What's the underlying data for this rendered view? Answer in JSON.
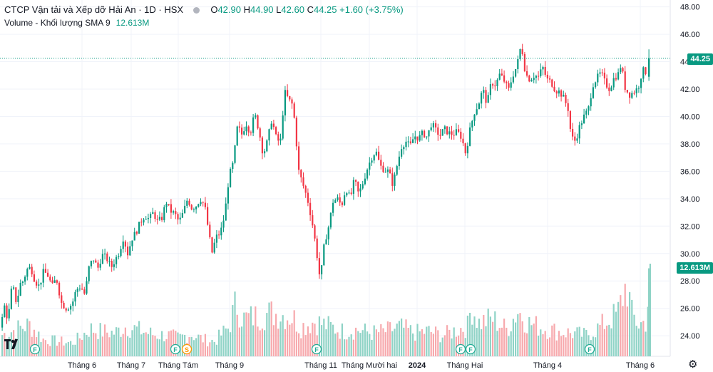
{
  "legend": {
    "title": "CTCP Vận tải và Xếp dỡ Hải An · 1D · HSX",
    "open_label": "O",
    "open": "42.90",
    "high_label": "H",
    "high": "44.90",
    "low_label": "L",
    "low": "42.60",
    "close_label": "C",
    "close": "44.25",
    "change": "+1.60 (+3.75%)",
    "volume_label": "Volume - Khối lượng SMA 9",
    "volume_value": "12.613M"
  },
  "price_tag": "44.25",
  "volume_tag": "12.613M",
  "colors": {
    "up": "#089981",
    "down": "#f23645",
    "up_volume": "#8fd3c6",
    "down_volume": "#f7a9ad",
    "grid": "#f0f3fa",
    "event_badge": "#22ab94",
    "split_badge": "#ff9800"
  },
  "icons": {
    "logo": "tradingview-logo-icon",
    "settings": "gear-icon"
  },
  "chart_data": {
    "type": "candlestick",
    "title": "CTCP Vận tải và Xếp dỡ Hải An · 1D · HSX",
    "ylim": [
      22.5,
      48.5
    ],
    "y_ticks": [
      "48.00",
      "46.00",
      "44.00",
      "42.00",
      "40.00",
      "38.00",
      "36.00",
      "34.00",
      "32.00",
      "30.00",
      "28.00",
      "26.00",
      "24.00"
    ],
    "x_ticks": [
      "Tháng 6",
      "Tháng 7",
      "Tháng Tám",
      "Tháng 9",
      "Tháng 11",
      "Tháng Mười hai",
      "2024",
      "Tháng Hai",
      "Tháng 4",
      "Tháng 6"
    ],
    "last_price": 44.25,
    "last_volume": "12.613M",
    "price_path": [
      [
        0,
        24.6
      ],
      [
        5,
        26.2
      ],
      [
        10,
        25.1
      ],
      [
        16,
        27.8
      ],
      [
        22,
        26.4
      ],
      [
        28,
        27.9
      ],
      [
        32,
        28.0
      ],
      [
        36,
        28.8
      ],
      [
        42,
        29.0
      ],
      [
        48,
        28.0
      ],
      [
        54,
        27.6
      ],
      [
        60,
        28.7
      ],
      [
        66,
        28.4
      ],
      [
        72,
        27.6
      ],
      [
        78,
        28.2
      ],
      [
        85,
        26.4
      ],
      [
        92,
        26.0
      ],
      [
        100,
        26.3
      ],
      [
        106,
        27.4
      ],
      [
        112,
        27.6
      ],
      [
        118,
        27.0
      ],
      [
        124,
        29.1
      ],
      [
        130,
        29.6
      ],
      [
        136,
        28.9
      ],
      [
        142,
        29.9
      ],
      [
        148,
        29.7
      ],
      [
        155,
        29.0
      ],
      [
        160,
        29.5
      ],
      [
        166,
        30.1
      ],
      [
        172,
        31.2
      ],
      [
        178,
        30.0
      ],
      [
        184,
        31.1
      ],
      [
        190,
        31.6
      ],
      [
        196,
        32.3
      ],
      [
        202,
        32.8
      ],
      [
        208,
        32.5
      ],
      [
        214,
        33.0
      ],
      [
        220,
        32.3
      ],
      [
        226,
        32.6
      ],
      [
        232,
        33.8
      ],
      [
        238,
        33.1
      ],
      [
        244,
        32.9
      ],
      [
        250,
        32.3
      ],
      [
        256,
        33.0
      ],
      [
        262,
        34.0
      ],
      [
        268,
        33.3
      ],
      [
        274,
        33.5
      ],
      [
        280,
        34.0
      ],
      [
        286,
        33.5
      ],
      [
        292,
        31.4
      ],
      [
        296,
        30.0
      ],
      [
        302,
        31.2
      ],
      [
        308,
        31.5
      ],
      [
        314,
        32.8
      ],
      [
        320,
        35.6
      ],
      [
        326,
        36.6
      ],
      [
        332,
        39.3
      ],
      [
        338,
        38.7
      ],
      [
        344,
        39.5
      ],
      [
        350,
        38.8
      ],
      [
        356,
        40.2
      ],
      [
        362,
        39.0
      ],
      [
        368,
        37.2
      ],
      [
        374,
        38.2
      ],
      [
        380,
        39.8
      ],
      [
        386,
        38.5
      ],
      [
        392,
        38.0
      ],
      [
        398,
        41.8
      ],
      [
        404,
        41.2
      ],
      [
        410,
        40.8
      ],
      [
        414,
        38.5
      ],
      [
        418,
        36.0
      ],
      [
        424,
        35.0
      ],
      [
        430,
        34.0
      ],
      [
        436,
        32.5
      ],
      [
        442,
        30.5
      ],
      [
        448,
        28.0
      ],
      [
        454,
        30.8
      ],
      [
        460,
        32.0
      ],
      [
        466,
        33.8
      ],
      [
        472,
        34.0
      ],
      [
        478,
        33.5
      ],
      [
        484,
        34.8
      ],
      [
        490,
        34.0
      ],
      [
        496,
        35.4
      ],
      [
        502,
        34.3
      ],
      [
        508,
        35.2
      ],
      [
        514,
        36.2
      ],
      [
        520,
        37.0
      ],
      [
        526,
        37.5
      ],
      [
        532,
        36.4
      ],
      [
        538,
        36.1
      ],
      [
        544,
        36.0
      ],
      [
        550,
        35.0
      ],
      [
        556,
        36.5
      ],
      [
        562,
        37.8
      ],
      [
        568,
        38.2
      ],
      [
        574,
        37.8
      ],
      [
        580,
        38.6
      ],
      [
        586,
        38.4
      ],
      [
        592,
        38.8
      ],
      [
        598,
        38.5
      ],
      [
        604,
        39.5
      ],
      [
        610,
        39.0
      ],
      [
        616,
        38.6
      ],
      [
        622,
        39.1
      ],
      [
        628,
        38.8
      ],
      [
        634,
        38.7
      ],
      [
        640,
        38.9
      ],
      [
        646,
        38.5
      ],
      [
        652,
        37.3
      ],
      [
        658,
        39.0
      ],
      [
        664,
        40.3
      ],
      [
        670,
        40.9
      ],
      [
        676,
        42.0
      ],
      [
        682,
        40.9
      ],
      [
        688,
        42.5
      ],
      [
        694,
        42.3
      ],
      [
        700,
        43.1
      ],
      [
        706,
        42.6
      ],
      [
        712,
        41.9
      ],
      [
        718,
        43.0
      ],
      [
        724,
        43.7
      ],
      [
        730,
        45.3
      ],
      [
        736,
        43.1
      ],
      [
        742,
        42.7
      ],
      [
        748,
        43.0
      ],
      [
        754,
        42.9
      ],
      [
        760,
        43.6
      ],
      [
        766,
        42.7
      ],
      [
        772,
        42.5
      ],
      [
        778,
        41.9
      ],
      [
        784,
        41.8
      ],
      [
        790,
        41.3
      ],
      [
        796,
        40.5
      ],
      [
        800,
        38.5
      ],
      [
        806,
        38.2
      ],
      [
        812,
        39.3
      ],
      [
        818,
        40.0
      ],
      [
        824,
        40.5
      ],
      [
        830,
        42.3
      ],
      [
        836,
        42.8
      ],
      [
        842,
        43.2
      ],
      [
        848,
        42.4
      ],
      [
        854,
        42.0
      ],
      [
        860,
        42.8
      ],
      [
        866,
        43.1
      ],
      [
        870,
        43.8
      ],
      [
        876,
        42.0
      ],
      [
        882,
        41.6
      ],
      [
        888,
        41.8
      ],
      [
        894,
        42.1
      ],
      [
        900,
        43.4
      ],
      [
        906,
        43.2
      ],
      [
        910,
        44.25
      ]
    ],
    "volume_path": [
      [
        0,
        0.25
      ],
      [
        20,
        0.32
      ],
      [
        40,
        0.38
      ],
      [
        60,
        0.2
      ],
      [
        80,
        0.18
      ],
      [
        100,
        0.16
      ],
      [
        110,
        0.22
      ],
      [
        125,
        0.33
      ],
      [
        140,
        0.3
      ],
      [
        160,
        0.28
      ],
      [
        175,
        0.36
      ],
      [
        195,
        0.31
      ],
      [
        215,
        0.26
      ],
      [
        235,
        0.25
      ],
      [
        250,
        0.22
      ],
      [
        265,
        0.27
      ],
      [
        285,
        0.2
      ],
      [
        300,
        0.18
      ],
      [
        320,
        0.35
      ],
      [
        330,
        0.64
      ],
      [
        340,
        0.45
      ],
      [
        360,
        0.48
      ],
      [
        380,
        0.52
      ],
      [
        395,
        0.5
      ],
      [
        410,
        0.47
      ],
      [
        420,
        0.35
      ],
      [
        440,
        0.42
      ],
      [
        460,
        0.36
      ],
      [
        480,
        0.3
      ],
      [
        500,
        0.32
      ],
      [
        520,
        0.28
      ],
      [
        540,
        0.3
      ],
      [
        560,
        0.35
      ],
      [
        580,
        0.28
      ],
      [
        600,
        0.3
      ],
      [
        620,
        0.25
      ],
      [
        640,
        0.32
      ],
      [
        655,
        0.36
      ],
      [
        660,
        0.62
      ],
      [
        670,
        0.4
      ],
      [
        690,
        0.45
      ],
      [
        710,
        0.32
      ],
      [
        725,
        0.55
      ],
      [
        740,
        0.4
      ],
      [
        760,
        0.34
      ],
      [
        780,
        0.3
      ],
      [
        800,
        0.28
      ],
      [
        820,
        0.25
      ],
      [
        840,
        0.35
      ],
      [
        855,
        0.45
      ],
      [
        865,
        0.5
      ],
      [
        872,
        0.72
      ],
      [
        878,
        0.88
      ],
      [
        885,
        0.5
      ],
      [
        895,
        0.38
      ],
      [
        905,
        0.42
      ],
      [
        911,
        0.95
      ]
    ],
    "event_badges": [
      {
        "x": 49,
        "label": "F",
        "kind": "event"
      },
      {
        "x": 246,
        "label": "F",
        "kind": "event"
      },
      {
        "x": 262,
        "label": "S",
        "kind": "split"
      },
      {
        "x": 444,
        "label": "F",
        "kind": "event"
      },
      {
        "x": 646,
        "label": "F",
        "kind": "event"
      },
      {
        "x": 660,
        "label": "F",
        "kind": "event"
      },
      {
        "x": 827,
        "label": "F",
        "kind": "event"
      }
    ]
  }
}
